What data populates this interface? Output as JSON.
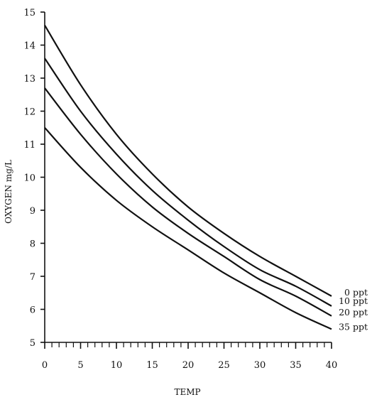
{
  "chart_data": {
    "type": "line",
    "title": "",
    "xlabel": "TEMP",
    "ylabel": "OXYGEN   mg/L",
    "xlim": [
      0,
      40
    ],
    "ylim": [
      5,
      15
    ],
    "xticks": [
      0,
      5,
      10,
      15,
      20,
      25,
      30,
      35,
      40
    ],
    "yticks": [
      5,
      6,
      7,
      8,
      9,
      10,
      11,
      12,
      13,
      14,
      15
    ],
    "grid": false,
    "legend": "labels at right end of each line",
    "x": [
      0,
      5,
      10,
      15,
      20,
      25,
      30,
      35,
      40
    ],
    "series": [
      {
        "name": "0 ppt",
        "values": [
          14.6,
          12.8,
          11.3,
          10.1,
          9.1,
          8.3,
          7.6,
          7.0,
          6.4
        ]
      },
      {
        "name": "10 ppt",
        "values": [
          13.6,
          12.0,
          10.7,
          9.6,
          8.7,
          7.9,
          7.2,
          6.7,
          6.1
        ]
      },
      {
        "name": "20 ppt",
        "values": [
          12.7,
          11.3,
          10.1,
          9.1,
          8.3,
          7.6,
          6.9,
          6.4,
          5.8
        ]
      },
      {
        "name": "35 ppt",
        "values": [
          11.5,
          10.3,
          9.3,
          8.5,
          7.8,
          7.1,
          6.5,
          5.9,
          5.4
        ]
      }
    ]
  }
}
